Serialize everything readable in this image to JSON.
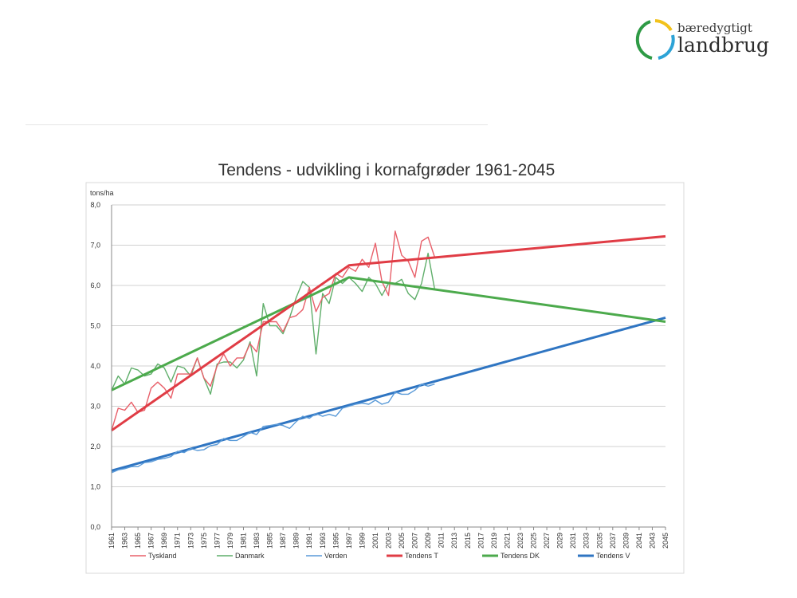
{
  "logo": {
    "line1": "bæredygtigt",
    "line2": "landbrug"
  },
  "chart_data": {
    "type": "line",
    "title": "Tendens - udvikling i kornafgrøder 1961-2045",
    "ylabel": "tons/ha",
    "xlabel": "",
    "ylim": [
      0,
      8
    ],
    "xlim": [
      1961,
      2045
    ],
    "yticks": [
      "0,0",
      "1,0",
      "2,0",
      "3,0",
      "4,0",
      "5,0",
      "6,0",
      "7,0",
      "8,0"
    ],
    "xticks": [
      "1961",
      "1963",
      "1965",
      "1967",
      "1969",
      "1971",
      "1973",
      "1975",
      "1977",
      "1979",
      "1981",
      "1983",
      "1985",
      "1987",
      "1989",
      "1991",
      "1993",
      "1995",
      "1997",
      "1999",
      "2001",
      "2003",
      "2005",
      "2007",
      "2009",
      "2011",
      "2013",
      "2015",
      "2017",
      "2019",
      "2021",
      "2023",
      "2025",
      "2027",
      "2029",
      "2031",
      "2033",
      "2035",
      "2037",
      "2039",
      "2041",
      "2043",
      "2045"
    ],
    "grid": true,
    "legend_position": "bottom",
    "colors": {
      "tyskland": "#e8606a",
      "danmark": "#5fae6a",
      "verden": "#5a9ad8",
      "tendens_t": "#e03c45",
      "tendens_dk": "#4caa4c",
      "tendens_v": "#2f75c2"
    },
    "series": [
      {
        "name": "Tyskland",
        "key": "tyskland",
        "x": [
          1961,
          1962,
          1963,
          1964,
          1965,
          1966,
          1967,
          1968,
          1969,
          1970,
          1971,
          1972,
          1973,
          1974,
          1975,
          1976,
          1977,
          1978,
          1979,
          1980,
          1981,
          1982,
          1983,
          1984,
          1985,
          1986,
          1987,
          1988,
          1989,
          1990,
          1991,
          1992,
          1993,
          1994,
          1995,
          1996,
          1997,
          1998,
          1999,
          2000,
          2001,
          2002,
          2003,
          2004,
          2005,
          2006,
          2007,
          2008,
          2009,
          2010
        ],
        "y": [
          2.4,
          2.95,
          2.9,
          3.1,
          2.85,
          2.9,
          3.45,
          3.6,
          3.45,
          3.2,
          3.8,
          3.8,
          3.8,
          4.2,
          3.7,
          3.5,
          4.0,
          4.3,
          4.0,
          4.2,
          4.2,
          4.55,
          4.35,
          5.1,
          5.1,
          5.1,
          4.85,
          5.2,
          5.25,
          5.4,
          5.95,
          5.35,
          5.7,
          5.8,
          6.3,
          6.2,
          6.45,
          6.35,
          6.65,
          6.45,
          7.05,
          6.1,
          5.75,
          7.35,
          6.75,
          6.6,
          6.2,
          7.1,
          7.2,
          6.7
        ]
      },
      {
        "name": "Danmark",
        "key": "danmark",
        "x": [
          1961,
          1962,
          1963,
          1964,
          1965,
          1966,
          1967,
          1968,
          1969,
          1970,
          1971,
          1972,
          1973,
          1974,
          1975,
          1976,
          1977,
          1978,
          1979,
          1980,
          1981,
          1982,
          1983,
          1984,
          1985,
          1986,
          1987,
          1988,
          1989,
          1990,
          1991,
          1992,
          1993,
          1994,
          1995,
          1996,
          1997,
          1998,
          1999,
          2000,
          2001,
          2002,
          2003,
          2004,
          2005,
          2006,
          2007,
          2008,
          2009,
          2010
        ],
        "y": [
          3.4,
          3.75,
          3.55,
          3.95,
          3.9,
          3.75,
          3.8,
          4.05,
          3.95,
          3.6,
          4.0,
          3.95,
          3.75,
          4.2,
          3.7,
          3.3,
          4.05,
          4.1,
          4.1,
          3.95,
          4.15,
          4.6,
          3.75,
          5.55,
          5.0,
          5.0,
          4.8,
          5.2,
          5.7,
          6.1,
          5.95,
          4.3,
          5.8,
          5.55,
          6.2,
          6.05,
          6.2,
          6.05,
          5.85,
          6.2,
          6.05,
          5.75,
          6.05,
          6.05,
          6.15,
          5.8,
          5.65,
          6.05,
          6.8,
          5.9
        ]
      },
      {
        "name": "Verden",
        "key": "verden",
        "x": [
          1961,
          1962,
          1963,
          1964,
          1965,
          1966,
          1967,
          1968,
          1969,
          1970,
          1971,
          1972,
          1973,
          1974,
          1975,
          1976,
          1977,
          1978,
          1979,
          1980,
          1981,
          1982,
          1983,
          1984,
          1985,
          1986,
          1987,
          1988,
          1989,
          1990,
          1991,
          1992,
          1993,
          1994,
          1995,
          1996,
          1997,
          1998,
          1999,
          2000,
          2001,
          2002,
          2003,
          2004,
          2005,
          2006,
          2007,
          2008,
          2009,
          2010
        ],
        "y": [
          1.35,
          1.42,
          1.45,
          1.5,
          1.5,
          1.6,
          1.62,
          1.68,
          1.7,
          1.75,
          1.88,
          1.85,
          1.95,
          1.9,
          1.92,
          2.02,
          2.05,
          2.2,
          2.15,
          2.15,
          2.25,
          2.35,
          2.3,
          2.5,
          2.52,
          2.55,
          2.52,
          2.45,
          2.62,
          2.75,
          2.7,
          2.82,
          2.75,
          2.8,
          2.75,
          2.95,
          3.0,
          3.05,
          3.08,
          3.05,
          3.15,
          3.05,
          3.1,
          3.35,
          3.3,
          3.3,
          3.4,
          3.55,
          3.5,
          3.55
        ]
      },
      {
        "name": "Tendens T",
        "key": "tendens_t",
        "x": [
          1961,
          1997,
          2045
        ],
        "y": [
          2.4,
          6.5,
          7.22
        ]
      },
      {
        "name": "Tendens DK",
        "key": "tendens_dk",
        "x": [
          1961,
          1997,
          2045
        ],
        "y": [
          3.4,
          6.2,
          5.1
        ]
      },
      {
        "name": "Tendens V",
        "key": "tendens_v",
        "x": [
          1961,
          2045
        ],
        "y": [
          1.4,
          5.2
        ]
      }
    ]
  }
}
